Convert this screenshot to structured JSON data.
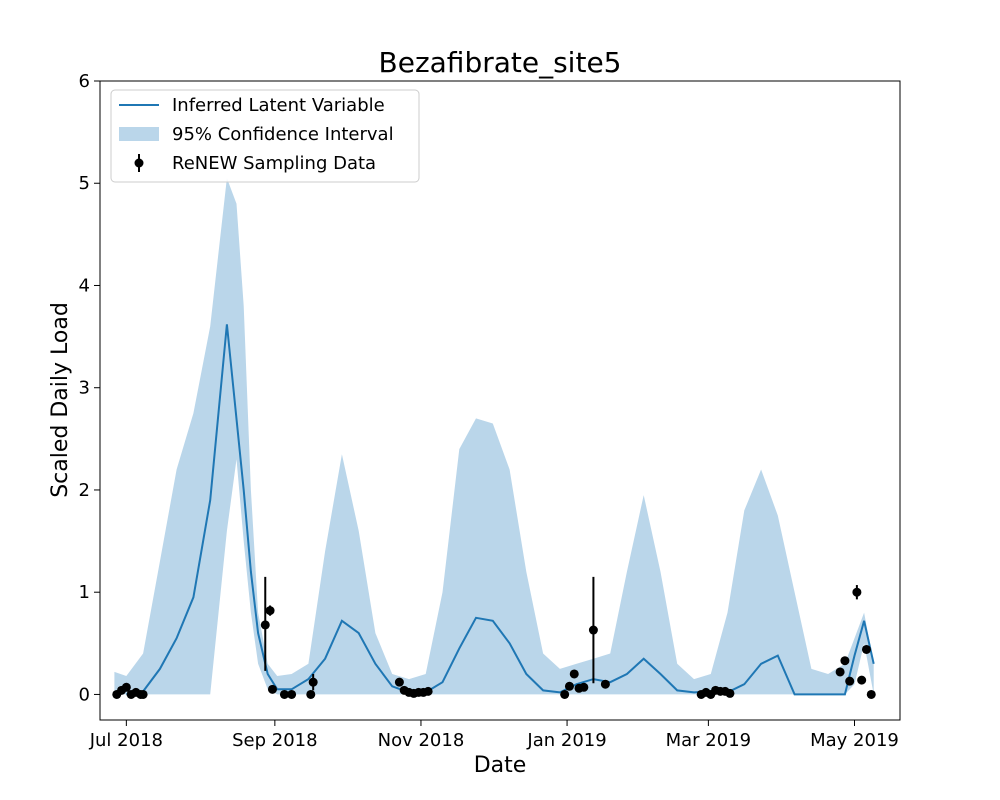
{
  "chart_data": {
    "type": "line",
    "title": "Bezafibrate_site5",
    "xlabel": "Date",
    "ylabel": "Scaled Daily Load",
    "xlim": [
      "2018-06-20",
      "2019-05-20"
    ],
    "ylim": [
      -0.25,
      6
    ],
    "x_ticks": [
      {
        "date": "2018-07-01",
        "label": "Jul 2018"
      },
      {
        "date": "2018-09-01",
        "label": "Sep 2018"
      },
      {
        "date": "2018-11-01",
        "label": "Nov 2018"
      },
      {
        "date": "2019-01-01",
        "label": "Jan 2019"
      },
      {
        "date": "2019-03-01",
        "label": "Mar 2019"
      },
      {
        "date": "2019-05-01",
        "label": "May 2019"
      }
    ],
    "y_ticks": [
      0,
      1,
      2,
      3,
      4,
      5,
      6
    ],
    "legend_position": "top-left",
    "colors": {
      "line": "#1f77b4",
      "band": "#bad6ea",
      "points": "#000000"
    },
    "series": [
      {
        "name": "Inferred Latent Variable",
        "kind": "line",
        "x": [
          "2018-07-01",
          "2018-07-08",
          "2018-07-15",
          "2018-07-22",
          "2018-07-29",
          "2018-08-05",
          "2018-08-12",
          "2018-08-19",
          "2018-08-22",
          "2018-08-25",
          "2018-08-29",
          "2018-09-02",
          "2018-09-08",
          "2018-09-15",
          "2018-09-22",
          "2018-09-29",
          "2018-10-06",
          "2018-10-13",
          "2018-10-20",
          "2018-10-27",
          "2018-11-03",
          "2018-11-10",
          "2018-11-17",
          "2018-11-24",
          "2018-12-01",
          "2018-12-08",
          "2018-12-15",
          "2018-12-22",
          "2018-12-29",
          "2019-01-05",
          "2019-01-12",
          "2019-01-19",
          "2019-01-26",
          "2019-02-02",
          "2019-02-09",
          "2019-02-16",
          "2019-02-23",
          "2019-03-02",
          "2019-03-09",
          "2019-03-16",
          "2019-03-23",
          "2019-03-30",
          "2019-04-06",
          "2019-04-13",
          "2019-04-20",
          "2019-04-27",
          "2019-05-01",
          "2019-05-05",
          "2019-05-09"
        ],
        "y": [
          0.0,
          0.03,
          0.25,
          0.55,
          0.95,
          1.9,
          3.62,
          2.0,
          1.2,
          0.6,
          0.2,
          0.05,
          0.05,
          0.15,
          0.35,
          0.72,
          0.6,
          0.3,
          0.08,
          0.02,
          0.02,
          0.12,
          0.45,
          0.75,
          0.72,
          0.5,
          0.2,
          0.04,
          0.02,
          0.1,
          0.15,
          0.12,
          0.2,
          0.35,
          0.2,
          0.04,
          0.02,
          0.03,
          0.02,
          0.1,
          0.3,
          0.38,
          0.0,
          0.0,
          0.0,
          0.0,
          0.38,
          0.72,
          0.3
        ]
      },
      {
        "name": "95% Confidence Interval",
        "kind": "band",
        "x": [
          "2018-06-26",
          "2018-07-01",
          "2018-07-08",
          "2018-07-15",
          "2018-07-22",
          "2018-07-29",
          "2018-08-05",
          "2018-08-12",
          "2018-08-16",
          "2018-08-19",
          "2018-08-22",
          "2018-08-25",
          "2018-08-29",
          "2018-09-02",
          "2018-09-08",
          "2018-09-15",
          "2018-09-22",
          "2018-09-29",
          "2018-10-06",
          "2018-10-13",
          "2018-10-20",
          "2018-10-27",
          "2018-11-03",
          "2018-11-10",
          "2018-11-17",
          "2018-11-24",
          "2018-12-01",
          "2018-12-08",
          "2018-12-15",
          "2018-12-22",
          "2018-12-29",
          "2019-01-05",
          "2019-01-12",
          "2019-01-19",
          "2019-01-26",
          "2019-02-02",
          "2019-02-09",
          "2019-02-16",
          "2019-02-23",
          "2019-03-02",
          "2019-03-09",
          "2019-03-16",
          "2019-03-23",
          "2019-03-30",
          "2019-04-06",
          "2019-04-13",
          "2019-04-20",
          "2019-04-27",
          "2019-05-01",
          "2019-05-05",
          "2019-05-09"
        ],
        "upper": [
          0.22,
          0.18,
          0.4,
          1.3,
          2.2,
          2.75,
          3.6,
          5.05,
          4.8,
          3.8,
          2.0,
          0.8,
          0.3,
          0.18,
          0.2,
          0.3,
          1.4,
          2.35,
          1.6,
          0.6,
          0.2,
          0.15,
          0.2,
          1.0,
          2.4,
          2.7,
          2.65,
          2.2,
          1.2,
          0.4,
          0.25,
          0.3,
          0.35,
          0.4,
          1.2,
          1.95,
          1.2,
          0.3,
          0.15,
          0.2,
          0.8,
          1.8,
          2.2,
          1.75,
          1.0,
          0.25,
          0.2,
          0.3,
          0.55,
          0.8,
          0.3
        ],
        "lower": [
          0.0,
          0.0,
          0.0,
          0.0,
          0.0,
          0.0,
          0.0,
          1.6,
          2.3,
          1.5,
          0.8,
          0.3,
          0.05,
          0.0,
          0.0,
          0.0,
          0.0,
          0.0,
          0.0,
          0.0,
          0.0,
          0.0,
          0.0,
          0.0,
          0.0,
          0.0,
          0.0,
          0.0,
          0.0,
          0.0,
          0.0,
          0.0,
          0.0,
          0.0,
          0.0,
          0.0,
          0.0,
          0.0,
          0.0,
          0.0,
          0.0,
          0.0,
          0.0,
          0.0,
          0.0,
          0.0,
          0.0,
          0.0,
          0.1,
          0.5,
          0.0
        ]
      },
      {
        "name": "ReNEW Sampling Data",
        "kind": "errorbar",
        "points": [
          {
            "x": "2018-06-27",
            "y": 0.0
          },
          {
            "x": "2018-06-29",
            "y": 0.04
          },
          {
            "x": "2018-07-01",
            "y": 0.07
          },
          {
            "x": "2018-07-03",
            "y": 0.0
          },
          {
            "x": "2018-07-05",
            "y": 0.02
          },
          {
            "x": "2018-07-07",
            "y": 0.0
          },
          {
            "x": "2018-07-08",
            "y": 0.0
          },
          {
            "x": "2018-08-28",
            "y": 0.68,
            "yerr_low": 0.45,
            "yerr_high": 0.47
          },
          {
            "x": "2018-08-30",
            "y": 0.82,
            "yerr_low": 0.05,
            "yerr_high": 0.05
          },
          {
            "x": "2018-08-31",
            "y": 0.05
          },
          {
            "x": "2018-09-05",
            "y": 0.0
          },
          {
            "x": "2018-09-08",
            "y": 0.0
          },
          {
            "x": "2018-09-16",
            "y": 0.0
          },
          {
            "x": "2018-09-17",
            "y": 0.12,
            "yerr_low": 0.08,
            "yerr_high": 0.08
          },
          {
            "x": "2018-10-23",
            "y": 0.12
          },
          {
            "x": "2018-10-25",
            "y": 0.04
          },
          {
            "x": "2018-10-27",
            "y": 0.02
          },
          {
            "x": "2018-10-29",
            "y": 0.01
          },
          {
            "x": "2018-10-31",
            "y": 0.02
          },
          {
            "x": "2018-11-02",
            "y": 0.02
          },
          {
            "x": "2018-11-04",
            "y": 0.03
          },
          {
            "x": "2018-12-31",
            "y": 0.0
          },
          {
            "x": "2019-01-02",
            "y": 0.08
          },
          {
            "x": "2019-01-04",
            "y": 0.2
          },
          {
            "x": "2019-01-06",
            "y": 0.06
          },
          {
            "x": "2019-01-08",
            "y": 0.07
          },
          {
            "x": "2019-01-12",
            "y": 0.63,
            "yerr_low": 0.52,
            "yerr_high": 0.52
          },
          {
            "x": "2019-01-17",
            "y": 0.1
          },
          {
            "x": "2019-02-26",
            "y": 0.0
          },
          {
            "x": "2019-02-28",
            "y": 0.02
          },
          {
            "x": "2019-03-02",
            "y": 0.0
          },
          {
            "x": "2019-03-04",
            "y": 0.04
          },
          {
            "x": "2019-03-06",
            "y": 0.03
          },
          {
            "x": "2019-03-08",
            "y": 0.03
          },
          {
            "x": "2019-03-10",
            "y": 0.01
          },
          {
            "x": "2019-04-25",
            "y": 0.22
          },
          {
            "x": "2019-04-27",
            "y": 0.33
          },
          {
            "x": "2019-04-29",
            "y": 0.13
          },
          {
            "x": "2019-05-02",
            "y": 1.0,
            "yerr_low": 0.07,
            "yerr_high": 0.07
          },
          {
            "x": "2019-05-04",
            "y": 0.14
          },
          {
            "x": "2019-05-06",
            "y": 0.44
          },
          {
            "x": "2019-05-08",
            "y": 0.0
          }
        ]
      }
    ]
  }
}
